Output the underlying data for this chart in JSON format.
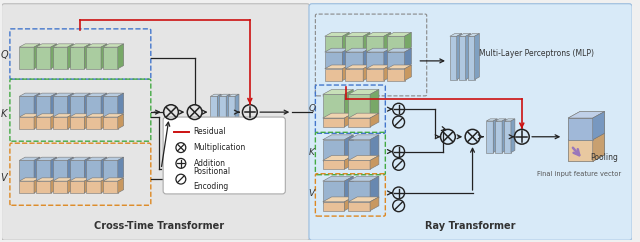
{
  "fig_width": 6.4,
  "fig_height": 2.42,
  "dpi": 100,
  "bg_main": "#f0f0f0",
  "left_panel_bg": "#e5e5e5",
  "right_panel_bg": "#d8eaf8",
  "left_panel_label": "Cross-Time Transformer",
  "right_panel_label": "Ray Transformer",
  "mlp_label": "Multi-Layer Perceptrons (MLP)",
  "pooling_label": "Pooling",
  "feature_label": "Final input feature vector",
  "green_face": "#aacca0",
  "green_side": "#78a868",
  "green_top": "#c8e0b8",
  "blue_face": "#9ab4d0",
  "blue_side": "#6888b0",
  "blue_top": "#b8cce0",
  "orange_face": "#e8c098",
  "orange_side": "#c89860",
  "orange_top": "#f0d4b0",
  "slim_face": "#b0c8e0",
  "slim_side": "#80a0c0",
  "slim_top": "#c8dae8"
}
